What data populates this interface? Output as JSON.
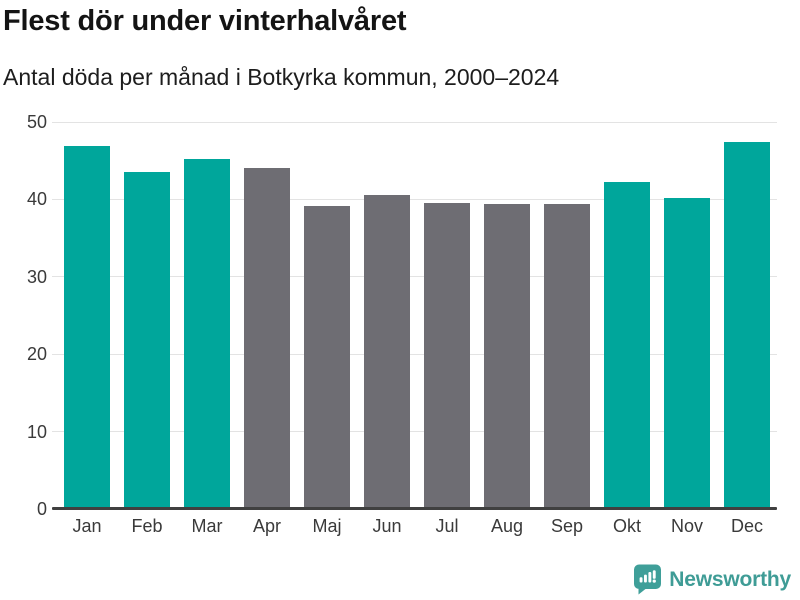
{
  "header": {
    "title": "Flest dör under vinterhalvåret",
    "subtitle": "Antal döda per månad i Botkyrka kommun, 2000–2024"
  },
  "chart_data": {
    "type": "bar",
    "title": "Flest dör under vinterhalvåret",
    "subtitle": "Antal döda per månad i Botkyrka kommun, 2000–2024",
    "categories": [
      "Jan",
      "Feb",
      "Mar",
      "Apr",
      "Maj",
      "Jun",
      "Jul",
      "Aug",
      "Sep",
      "Okt",
      "Nov",
      "Dec"
    ],
    "values": [
      46.9,
      43.6,
      45.2,
      44.1,
      39.1,
      40.6,
      39.5,
      39.4,
      39.4,
      42.2,
      40.2,
      47.4
    ],
    "highlighted": [
      true,
      true,
      true,
      false,
      false,
      false,
      false,
      false,
      false,
      true,
      true,
      true
    ],
    "xlabel": "",
    "ylabel": "",
    "ylim": [
      0,
      50
    ],
    "yticks": [
      0,
      10,
      20,
      30,
      40,
      50
    ],
    "grid": true,
    "legend": "none",
    "colors": {
      "highlight": "#00a69b",
      "base": "#6e6d73",
      "gridline": "#e3e3e3",
      "axis_line": "#404040",
      "tick_label": "#3a3a3a"
    }
  },
  "footer": {
    "brand": "Newsworthy",
    "brand_color": "#3f9c96",
    "logo_icon": "bar-chart-speech-bubble-icon"
  }
}
